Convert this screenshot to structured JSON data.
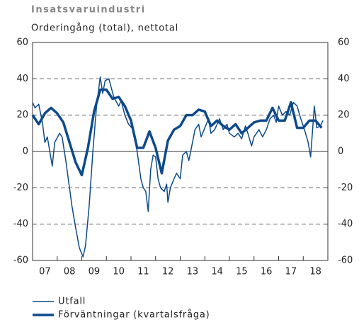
{
  "chart_data": {
    "type": "line",
    "title": "Insatsvaruindustri",
    "subtitle": "Orderingång (total), nettotal",
    "xlim": [
      2007,
      2019
    ],
    "xticks": [
      {
        "value": 2007.5,
        "label": "07"
      },
      {
        "value": 2008.5,
        "label": "08"
      },
      {
        "value": 2009.5,
        "label": "09"
      },
      {
        "value": 2010.5,
        "label": "10"
      },
      {
        "value": 2011.5,
        "label": "11"
      },
      {
        "value": 2012.5,
        "label": "12"
      },
      {
        "value": 2013.5,
        "label": "13"
      },
      {
        "value": 2014.5,
        "label": "14"
      },
      {
        "value": 2015.5,
        "label": "15"
      },
      {
        "value": 2016.5,
        "label": "16"
      },
      {
        "value": 2017.5,
        "label": "17"
      },
      {
        "value": 2018.5,
        "label": "18"
      }
    ],
    "ylim": [
      -60,
      60
    ],
    "yticks": [
      -60,
      -40,
      -20,
      0,
      20,
      40,
      60
    ],
    "grid": true,
    "series": [
      {
        "name": "Utfall",
        "color": "#0d4a8c",
        "width": 1.5,
        "x": [
          2007.0,
          2007.1,
          2007.25,
          2007.4,
          2007.5,
          2007.6,
          2007.8,
          2007.9,
          2008.1,
          2008.2,
          2008.35,
          2008.5,
          2008.6,
          2008.75,
          2008.9,
          2009.05,
          2009.15,
          2009.3,
          2009.45,
          2009.6,
          2009.75,
          2009.85,
          2009.95,
          2010.1,
          2010.2,
          2010.3,
          2010.5,
          2010.6,
          2010.75,
          2010.9,
          2011.1,
          2011.25,
          2011.4,
          2011.5,
          2011.6,
          2011.7,
          2011.8,
          2011.9,
          2012.0,
          2012.1,
          2012.2,
          2012.35,
          2012.45,
          2012.5,
          2012.6,
          2012.75,
          2012.85,
          2013.0,
          2013.1,
          2013.25,
          2013.35,
          2013.5,
          2013.6,
          2013.75,
          2013.85,
          2014.0,
          2014.15,
          2014.25,
          2014.4,
          2014.5,
          2014.6,
          2014.75,
          2014.9,
          2015.0,
          2015.2,
          2015.35,
          2015.5,
          2015.65,
          2015.75,
          2015.9,
          2016.0,
          2016.2,
          2016.35,
          2016.5,
          2016.65,
          2016.8,
          2016.9,
          2017.0,
          2017.15,
          2017.3,
          2017.45,
          2017.6,
          2017.75,
          2017.9,
          2018.05,
          2018.2,
          2018.3,
          2018.45,
          2018.55,
          2018.7,
          2018.8
        ],
        "values": [
          27,
          24,
          26,
          16,
          5,
          8,
          -8,
          5,
          10,
          8,
          -5,
          -20,
          -30,
          -42,
          -53,
          -58,
          -52,
          -30,
          0,
          25,
          41,
          32,
          39,
          40,
          35,
          30,
          25,
          28,
          20,
          15,
          12,
          0,
          -15,
          -20,
          -22,
          -33,
          -10,
          -2,
          -3,
          -15,
          -20,
          -22,
          -18,
          -28,
          -20,
          -15,
          -12,
          -15,
          -2,
          0,
          -5,
          5,
          12,
          15,
          8,
          13,
          18,
          10,
          12,
          15,
          18,
          12,
          15,
          10,
          8,
          10,
          7,
          14,
          10,
          3,
          8,
          12,
          8,
          12,
          18,
          20,
          16,
          25,
          20,
          22,
          20,
          27,
          25,
          18,
          12,
          5,
          -3,
          25,
          13,
          14,
          17
        ]
      },
      {
        "name": "Förväntningar (kvartalsfråga)",
        "color": "#0d4a8c",
        "width": 3.5,
        "x": [
          2007.0,
          2007.25,
          2007.5,
          2007.75,
          2008.0,
          2008.25,
          2008.5,
          2008.75,
          2009.0,
          2009.25,
          2009.5,
          2009.75,
          2010.0,
          2010.25,
          2010.5,
          2010.75,
          2011.0,
          2011.25,
          2011.5,
          2011.75,
          2012.0,
          2012.25,
          2012.5,
          2012.75,
          2013.0,
          2013.25,
          2013.5,
          2013.75,
          2014.0,
          2014.25,
          2014.5,
          2014.75,
          2015.0,
          2015.25,
          2015.5,
          2015.75,
          2016.0,
          2016.25,
          2016.5,
          2016.75,
          2017.0,
          2017.25,
          2017.5,
          2017.75,
          2018.0,
          2018.25,
          2018.5,
          2018.75
        ],
        "values": [
          20,
          15,
          21,
          24,
          21,
          16,
          5,
          -6,
          -13,
          2,
          22,
          34,
          34,
          29,
          30,
          25,
          17,
          2,
          2,
          11,
          2,
          -12,
          6,
          12,
          14,
          20,
          20,
          23,
          22,
          14,
          17,
          14,
          12,
          15,
          10,
          13,
          16,
          17,
          17,
          24,
          17,
          17,
          27,
          13,
          13,
          17,
          17,
          13
        ]
      }
    ]
  }
}
